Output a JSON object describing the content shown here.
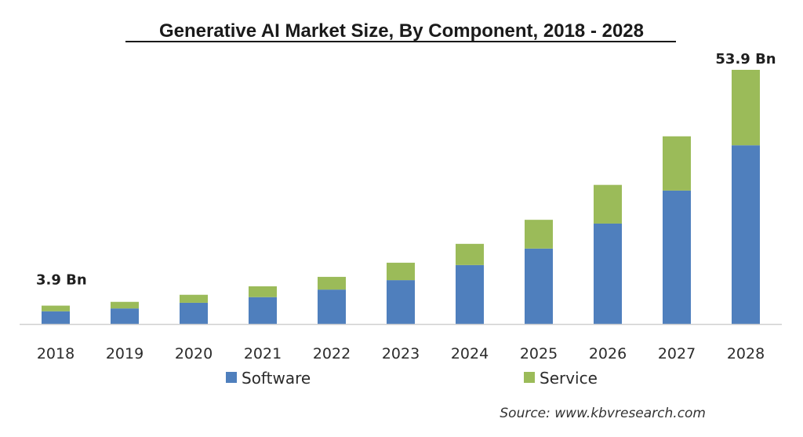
{
  "chart_data": {
    "type": "bar",
    "stacked": true,
    "title": "Generative AI Market Size, By Component, 2018 - 2028",
    "xlabel": "",
    "ylabel": "",
    "ylim": [
      0,
      54
    ],
    "grid": false,
    "legend_position": "bottom",
    "categories": [
      "2018",
      "2019",
      "2020",
      "2021",
      "2022",
      "2023",
      "2024",
      "2025",
      "2026",
      "2027",
      "2028"
    ],
    "series": [
      {
        "name": "Software",
        "color": "#4f7fbd",
        "values": [
          2.7,
          3.3,
          4.5,
          5.7,
          7.3,
          9.3,
          12.5,
          16.0,
          21.3,
          28.3,
          37.9
        ]
      },
      {
        "name": "Service",
        "color": "#9bbb59",
        "values": [
          1.2,
          1.4,
          1.7,
          2.3,
          2.7,
          3.7,
          4.5,
          6.1,
          8.2,
          11.5,
          16.0
        ]
      }
    ],
    "annotations": [
      {
        "category": "2018",
        "text": "3.9 Bn"
      },
      {
        "category": "2028",
        "text": "53.9 Bn"
      }
    ],
    "source": "Source:  www.kbvresearch.com"
  }
}
